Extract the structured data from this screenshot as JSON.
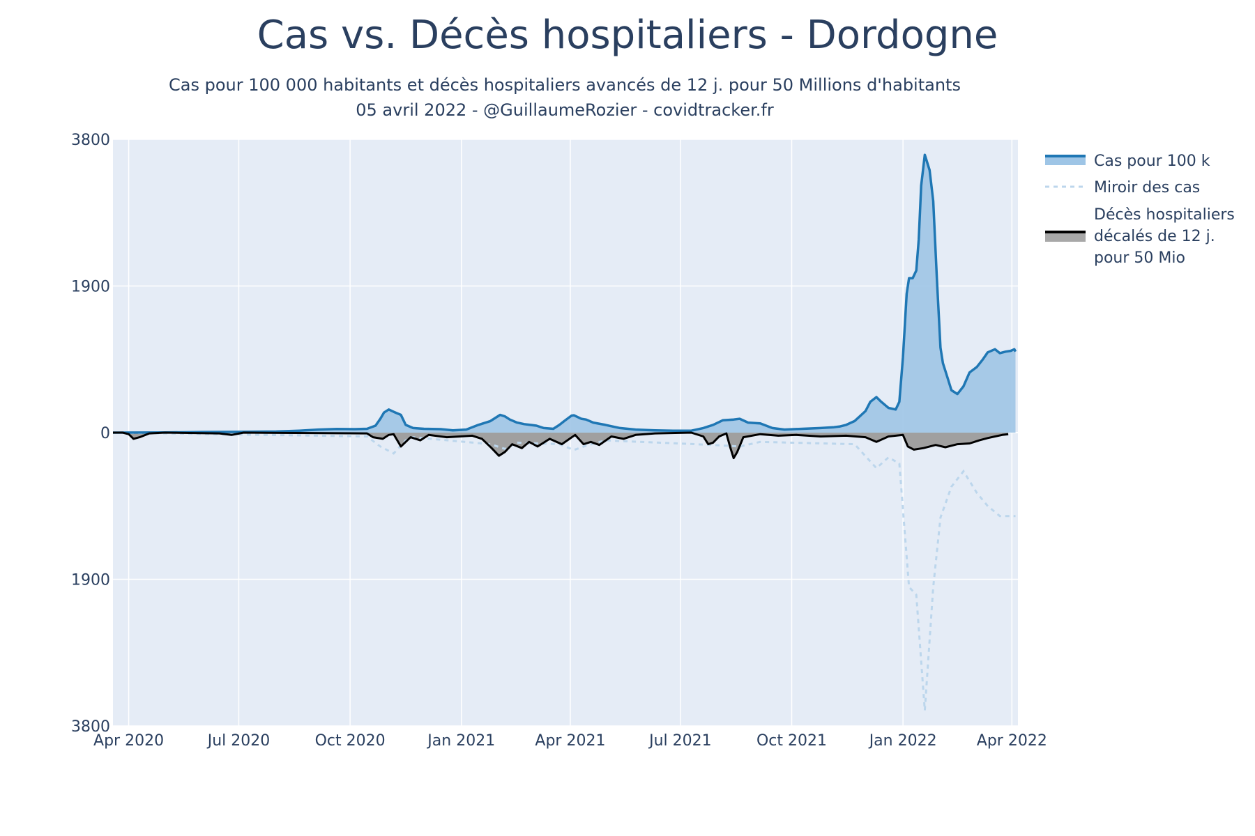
{
  "chart_data": {
    "type": "area",
    "title": "Cas vs. Décès hospitaliers - Dordogne",
    "subtitle": "Cas pour 100 000 habitants et décès hospitaliers avancés de 12 j. pour 50 Millions d'habitants",
    "caption": "05 avril 2022 - @GuillaumeRozier - covidtracker.fr",
    "xlabel": "",
    "ylabel": "",
    "y_tick_labels": [
      "3800",
      "1900",
      "0",
      "1900",
      "3800"
    ],
    "y_tick_values": [
      3800,
      1900,
      0,
      -1900,
      -3800
    ],
    "ylim": [
      -3800,
      3800
    ],
    "x_tick_labels": [
      "Apr 2020",
      "Jul 2020",
      "Oct 2020",
      "Jan 2021",
      "Apr 2021",
      "Jul 2021",
      "Oct 2021",
      "Jan 2022",
      "Apr 2022"
    ],
    "x_tick_dates": [
      "2020-04-01",
      "2020-07-01",
      "2020-10-01",
      "2021-01-01",
      "2021-04-01",
      "2021-07-01",
      "2021-10-01",
      "2022-01-01",
      "2022-04-01"
    ],
    "xlim": [
      "2020-03-19",
      "2022-04-06"
    ],
    "grid": true,
    "legend_position": "right",
    "series": [
      {
        "name": "Cas pour 100 k",
        "color": "#1f77b4",
        "fill": "#9ec5e6",
        "x": [
          "2020-03-19",
          "2020-05-01",
          "2020-06-01",
          "2020-07-01",
          "2020-08-01",
          "2020-08-20",
          "2020-09-05",
          "2020-09-20",
          "2020-10-05",
          "2020-10-15",
          "2020-10-22",
          "2020-10-26",
          "2020-10-29",
          "2020-11-02",
          "2020-11-06",
          "2020-11-12",
          "2020-11-16",
          "2020-11-22",
          "2020-12-01",
          "2020-12-15",
          "2020-12-25",
          "2021-01-05",
          "2021-01-15",
          "2021-01-25",
          "2021-02-02",
          "2021-02-06",
          "2021-02-10",
          "2021-02-16",
          "2021-02-22",
          "2021-03-04",
          "2021-03-10",
          "2021-03-18",
          "2021-03-23",
          "2021-03-27",
          "2021-04-02",
          "2021-04-04",
          "2021-04-10",
          "2021-04-14",
          "2021-04-20",
          "2021-04-30",
          "2021-05-12",
          "2021-05-25",
          "2021-06-10",
          "2021-06-25",
          "2021-07-10",
          "2021-07-20",
          "2021-07-28",
          "2021-08-05",
          "2021-08-14",
          "2021-08-19",
          "2021-08-26",
          "2021-09-05",
          "2021-09-15",
          "2021-09-25",
          "2021-10-10",
          "2021-10-25",
          "2021-11-05",
          "2021-11-10",
          "2021-11-15",
          "2021-11-22",
          "2021-12-01",
          "2021-12-05",
          "2021-12-10",
          "2021-12-14",
          "2021-12-20",
          "2021-12-26",
          "2021-12-29",
          "2022-01-01",
          "2022-01-04",
          "2022-01-06",
          "2022-01-09",
          "2022-01-12",
          "2022-01-14",
          "2022-01-16",
          "2022-01-19",
          "2022-01-23",
          "2022-01-26",
          "2022-01-29",
          "2022-02-01",
          "2022-02-03",
          "2022-02-07",
          "2022-02-10",
          "2022-02-15",
          "2022-02-20",
          "2022-02-25",
          "2022-03-03",
          "2022-03-08",
          "2022-03-12",
          "2022-03-18",
          "2022-03-22",
          "2022-03-27",
          "2022-03-31",
          "2022-04-03",
          "2022-04-04"
        ],
        "values": [
          0,
          2,
          8,
          10,
          14,
          25,
          40,
          48,
          45,
          50,
          90,
          180,
          260,
          300,
          270,
          230,
          100,
          60,
          50,
          45,
          30,
          40,
          100,
          150,
          230,
          210,
          170,
          130,
          110,
          90,
          60,
          50,
          100,
          150,
          220,
          225,
          180,
          170,
          130,
          100,
          60,
          40,
          30,
          25,
          25,
          60,
          100,
          160,
          170,
          180,
          130,
          120,
          60,
          40,
          50,
          60,
          70,
          80,
          100,
          150,
          280,
          400,
          460,
          400,
          320,
          300,
          400,
          980,
          1800,
          2000,
          2000,
          2100,
          2500,
          3200,
          3600,
          3400,
          3000,
          2000,
          1100,
          900,
          700,
          550,
          500,
          600,
          780,
          850,
          950,
          1040,
          1080,
          1030,
          1050,
          1060,
          1080,
          1050
        ]
      },
      {
        "name": "Miroir des cas",
        "color": "#bcd6ec",
        "x": [
          "2020-03-19",
          "2020-09-05",
          "2020-10-15",
          "2020-10-26",
          "2020-11-06",
          "2020-11-16",
          "2020-11-22",
          "2021-01-25",
          "2021-02-06",
          "2021-02-16",
          "2021-03-23",
          "2021-04-04",
          "2021-04-14",
          "2021-04-30",
          "2021-07-28",
          "2021-08-19",
          "2021-09-05",
          "2021-11-22",
          "2021-12-10",
          "2021-12-20",
          "2021-12-29",
          "2022-01-06",
          "2022-01-12",
          "2022-01-19",
          "2022-01-26",
          "2022-02-01",
          "2022-02-10",
          "2022-02-20",
          "2022-03-03",
          "2022-03-12",
          "2022-03-22",
          "2022-04-04"
        ],
        "values": [
          0,
          -40,
          -50,
          -180,
          -270,
          -100,
          -60,
          -150,
          -210,
          -130,
          -150,
          -225,
          -170,
          -100,
          -160,
          -180,
          -120,
          -150,
          -460,
          -320,
          -400,
          -2000,
          -2100,
          -3600,
          -2000,
          -1100,
          -700,
          -500,
          -780,
          -950,
          -1080,
          -1080
        ]
      },
      {
        "name": "Décès hospitaliers décalés de 12 j. pour 50 Mio",
        "color": "#000000",
        "fill": "#a0a0a0",
        "x": [
          "2020-03-19",
          "2020-03-27",
          "2020-04-01",
          "2020-04-05",
          "2020-04-10",
          "2020-04-18",
          "2020-05-01",
          "2020-06-15",
          "2020-06-25",
          "2020-07-05",
          "2020-10-15",
          "2020-10-20",
          "2020-10-28",
          "2020-11-02",
          "2020-11-06",
          "2020-11-12",
          "2020-11-20",
          "2020-11-28",
          "2020-12-05",
          "2020-12-20",
          "2021-01-10",
          "2021-01-18",
          "2021-01-26",
          "2021-02-01",
          "2021-02-06",
          "2021-02-12",
          "2021-02-20",
          "2021-02-26",
          "2021-03-05",
          "2021-03-15",
          "2021-03-25",
          "2021-04-05",
          "2021-04-12",
          "2021-04-18",
          "2021-04-25",
          "2021-05-05",
          "2021-05-15",
          "2021-05-25",
          "2021-06-10",
          "2021-07-10",
          "2021-07-20",
          "2021-07-24",
          "2021-07-28",
          "2021-08-02",
          "2021-08-08",
          "2021-08-11",
          "2021-08-14",
          "2021-08-17",
          "2021-08-22",
          "2021-09-05",
          "2021-09-20",
          "2021-10-05",
          "2021-10-25",
          "2021-11-15",
          "2021-12-01",
          "2021-12-10",
          "2021-12-20",
          "2022-01-01",
          "2022-01-05",
          "2022-01-10",
          "2022-01-18",
          "2022-01-28",
          "2022-02-05",
          "2022-02-15",
          "2022-02-25",
          "2022-03-05",
          "2022-03-12",
          "2022-03-18",
          "2022-03-24",
          "2022-03-29"
        ],
        "values": [
          0,
          0,
          -20,
          -80,
          -60,
          -10,
          0,
          -10,
          -30,
          0,
          -10,
          -60,
          -80,
          -30,
          -20,
          -180,
          -60,
          -100,
          -30,
          -60,
          -40,
          -80,
          -200,
          -300,
          -250,
          -150,
          -200,
          -120,
          -180,
          -80,
          -150,
          -30,
          -150,
          -120,
          -160,
          -50,
          -80,
          -30,
          -10,
          0,
          -50,
          -150,
          -130,
          -50,
          -10,
          -180,
          -330,
          -250,
          -60,
          -20,
          -40,
          -30,
          -50,
          -40,
          -60,
          -120,
          -50,
          -30,
          -180,
          -220,
          -200,
          -160,
          -190,
          -150,
          -140,
          -100,
          -70,
          -50,
          -30,
          -20
        ]
      }
    ]
  }
}
